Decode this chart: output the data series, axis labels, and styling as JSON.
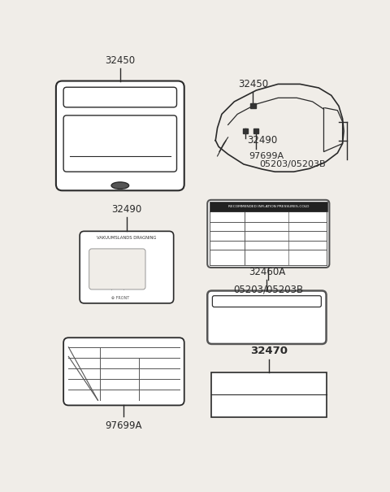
{
  "bg_color": "#f0ede8",
  "line_color": "#2a2a2a",
  "labels": {
    "32450_top": "32450",
    "32490_left": "32490",
    "97699A_bot": "97699A",
    "32450_car": "32450",
    "32490_car": "32490",
    "97699A_car": "97699A",
    "05203_car": "05203/05203B",
    "05203_label": "05203/05203B",
    "32460A": "32460A",
    "32470": "32470"
  },
  "inflation_header": "RECOMMENDED INFLATION PRESSURES-COLD",
  "vacuum_header": "VAKUUMSLANDS DRAGNING"
}
